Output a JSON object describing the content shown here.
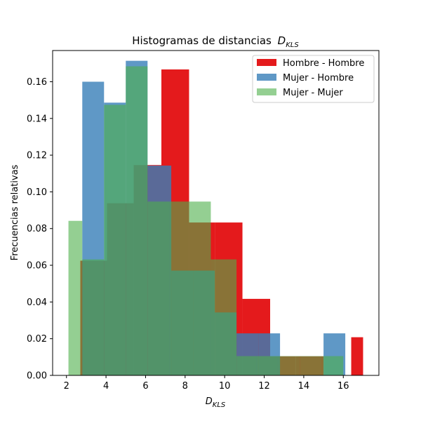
{
  "chart_data": {
    "type": "histogram",
    "title": "Histogramas de distancias",
    "title_math": "D",
    "title_math_sub": "KLS",
    "xlabel_math": "D",
    "xlabel_math_sub": "KLS",
    "ylabel": "Frecuencias relativas",
    "xlim": [
      1.3,
      17.8
    ],
    "ylim": [
      0,
      0.177
    ],
    "xticks": [
      2,
      4,
      6,
      8,
      10,
      12,
      14,
      16
    ],
    "yticks": [
      0.0,
      0.02,
      0.04,
      0.06,
      0.08,
      0.1,
      0.12,
      0.14,
      0.16
    ],
    "ytick_labels": [
      "0.00",
      "0.02",
      "0.04",
      "0.06",
      "0.08",
      "0.10",
      "0.12",
      "0.14",
      "0.16"
    ],
    "legend_position": "upper right",
    "series": [
      {
        "name": "Hombre - Hombre",
        "color": "#e41a1c",
        "opacity": 1.0,
        "bins": [
          [
            2.7,
            4.05,
            0.0625
          ],
          [
            4.05,
            5.4,
            0.0938
          ],
          [
            5.4,
            6.8,
            0.1146
          ],
          [
            6.8,
            8.2,
            0.1667
          ],
          [
            8.2,
            9.5,
            0.0833
          ],
          [
            9.5,
            10.9,
            0.0833
          ],
          [
            10.9,
            12.3,
            0.0417
          ],
          [
            12.3,
            13.6,
            0.0104
          ],
          [
            13.6,
            15.0,
            0.0104
          ],
          [
            15.0,
            16.4,
            0.0
          ],
          [
            16.4,
            17.0,
            0.0208
          ]
        ]
      },
      {
        "name": "Mujer - Hombre",
        "color": "#377eb8",
        "opacity": 0.8,
        "bins": [
          [
            2.8,
            3.9,
            0.16
          ],
          [
            3.9,
            5.0,
            0.1486
          ],
          [
            5.0,
            6.1,
            0.1714
          ],
          [
            6.1,
            7.3,
            0.1143
          ],
          [
            7.3,
            8.4,
            0.0571
          ],
          [
            8.4,
            9.5,
            0.0571
          ],
          [
            9.5,
            10.6,
            0.0343
          ],
          [
            10.6,
            11.7,
            0.0229
          ],
          [
            11.7,
            12.8,
            0.0229
          ],
          [
            12.8,
            13.9,
            0.0
          ],
          [
            13.9,
            15.0,
            0.0
          ],
          [
            15.0,
            16.1,
            0.0229
          ]
        ]
      },
      {
        "name": "Mujer - Mujer",
        "color": "#4daf4a",
        "opacity": 0.6,
        "bins": [
          [
            2.1,
            2.8,
            0.0842
          ],
          [
            2.8,
            3.9,
            0.0632
          ],
          [
            3.9,
            5.0,
            0.1474
          ],
          [
            5.0,
            6.1,
            0.1684
          ],
          [
            6.1,
            7.2,
            0.0947
          ],
          [
            7.2,
            8.2,
            0.0947
          ],
          [
            8.2,
            9.3,
            0.0947
          ],
          [
            9.3,
            10.6,
            0.0632
          ],
          [
            10.6,
            11.6,
            0.0105
          ],
          [
            11.6,
            12.7,
            0.0105
          ],
          [
            12.7,
            13.8,
            0.0105
          ],
          [
            13.8,
            14.9,
            0.0105
          ],
          [
            14.9,
            16.0,
            0.0105
          ]
        ]
      }
    ]
  }
}
